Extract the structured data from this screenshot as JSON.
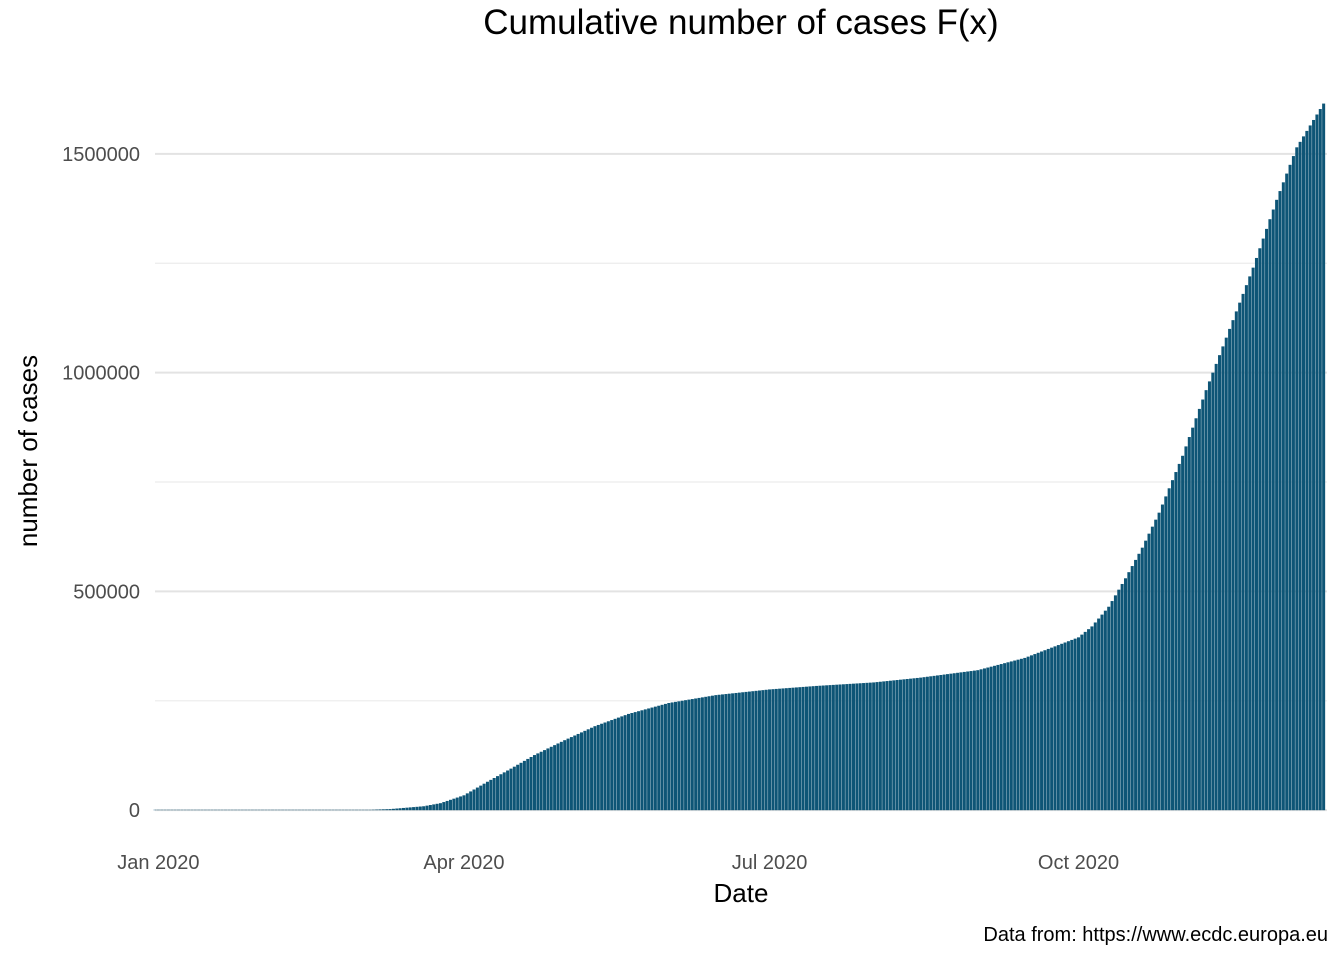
{
  "chart_data": {
    "type": "bar",
    "title": "Cumulative number of cases F(x)",
    "xlabel": "Date",
    "ylabel": "number of cases",
    "caption": "Data from: https://www.ecdc.europa.eu",
    "bar_color": "#0e5576",
    "grid": true,
    "legend": "none",
    "xlim": [
      "2019-12-31",
      "2020-12-14"
    ],
    "ylim": [
      -75000,
      1710000
    ],
    "x_ticks": [
      {
        "date": "2020-01-01",
        "label": "Jan 2020"
      },
      {
        "date": "2020-04-01",
        "label": "Apr 2020"
      },
      {
        "date": "2020-07-01",
        "label": "Jul 2020"
      },
      {
        "date": "2020-10-01",
        "label": "Oct 2020"
      }
    ],
    "y_ticks": [
      {
        "value": 0,
        "label": "0"
      },
      {
        "value": 500000,
        "label": "500000"
      },
      {
        "value": 1000000,
        "label": "1000000"
      },
      {
        "value": 1500000,
        "label": "1500000"
      }
    ],
    "y_minor_ticks": [
      250000,
      750000,
      1250000
    ],
    "series": [
      {
        "points": [
          [
            "2020-03-01",
            0
          ],
          [
            "2020-03-10",
            2500
          ],
          [
            "2020-03-20",
            9000
          ],
          [
            "2020-03-25",
            16000
          ],
          [
            "2020-04-01",
            34000
          ],
          [
            "2020-04-08",
            65000
          ],
          [
            "2020-04-15",
            95000
          ],
          [
            "2020-04-22",
            126000
          ],
          [
            "2020-05-01",
            160000
          ],
          [
            "2020-05-10",
            192000
          ],
          [
            "2020-05-20",
            220000
          ],
          [
            "2020-06-01",
            245000
          ],
          [
            "2020-06-15",
            263000
          ],
          [
            "2020-07-01",
            276000
          ],
          [
            "2020-07-15",
            284000
          ],
          [
            "2020-08-01",
            292000
          ],
          [
            "2020-08-15",
            303000
          ],
          [
            "2020-09-01",
            320000
          ],
          [
            "2020-09-15",
            348000
          ],
          [
            "2020-10-01",
            395000
          ],
          [
            "2020-10-05",
            420000
          ],
          [
            "2020-10-10",
            465000
          ],
          [
            "2020-10-15",
            530000
          ],
          [
            "2020-10-20",
            600000
          ],
          [
            "2020-10-25",
            680000
          ],
          [
            "2020-11-01",
            810000
          ],
          [
            "2020-11-08",
            960000
          ],
          [
            "2020-11-15",
            1100000
          ],
          [
            "2020-11-22",
            1240000
          ],
          [
            "2020-11-29",
            1395000
          ],
          [
            "2020-12-05",
            1515000
          ],
          [
            "2020-12-13",
            1615000
          ]
        ]
      }
    ]
  }
}
